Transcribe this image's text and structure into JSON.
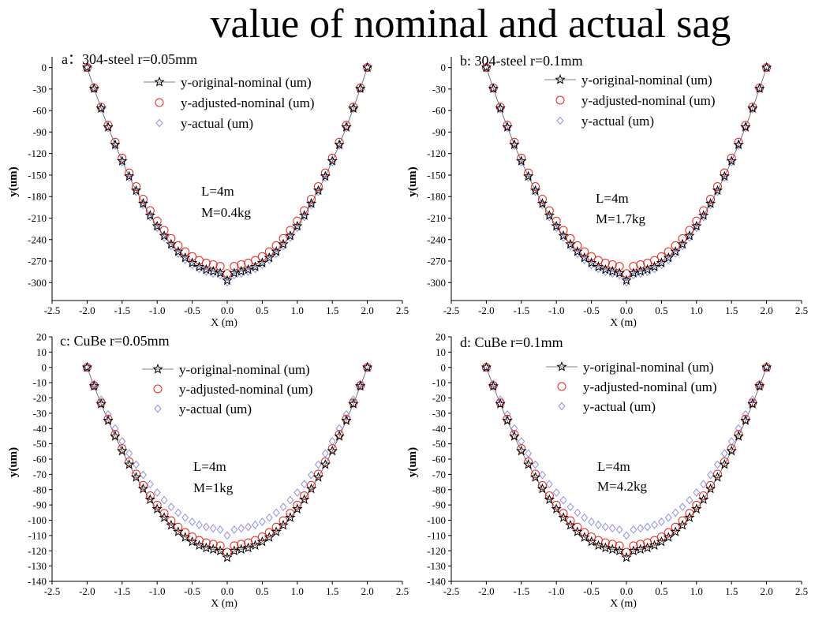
{
  "figure": {
    "title": "value of nominal and actual sag"
  },
  "colors": {
    "axis": "#000000",
    "original_line": "#5a5a5a",
    "original_marker": "#000000",
    "adjusted_marker": "#e8261f",
    "actual_marker": "#8f8fe6"
  },
  "chart_data": [
    {
      "type": "scatter",
      "panel_label": "a：304-steel r=0.05mm",
      "xlabel": "X (m)",
      "ylabel": "y(um)",
      "xlim": [
        -2.5,
        2.5
      ],
      "ylim": [
        -325,
        15
      ],
      "xticks": [
        -2.5,
        -2.0,
        -1.5,
        -1.0,
        -0.5,
        0.0,
        0.5,
        1.0,
        1.5,
        2.0,
        2.5
      ],
      "xtick_labels": [
        "-2.5",
        "-2.0",
        "-1.5",
        "-1.0",
        "-0.5",
        "0.0",
        "0.5",
        "1.0",
        "1.5",
        "2.0",
        "2.5"
      ],
      "yticks": [
        0,
        -30,
        -60,
        -90,
        -120,
        -150,
        -180,
        -210,
        -240,
        -270,
        -300
      ],
      "ytick_labels": [
        "0",
        "-30",
        "-60",
        "-90",
        "-120",
        "-150",
        "-180",
        "-210",
        "-240",
        "-270",
        "-300"
      ],
      "annotations": [
        "L=4m",
        "M=0.4kg"
      ],
      "legend": [
        "y-original-nominal (um)",
        "y-adjusted-nominal (um)",
        "y-actual (um)"
      ],
      "x": [
        -2.0,
        -1.9,
        -1.8,
        -1.7,
        -1.6,
        -1.5,
        -1.4,
        -1.3,
        -1.2,
        -1.1,
        -1.0,
        -0.9,
        -0.8,
        -0.7,
        -0.6,
        -0.5,
        -0.4,
        -0.3,
        -0.2,
        -0.1,
        0.0,
        0.1,
        0.2,
        0.3,
        0.4,
        0.5,
        0.6,
        0.7,
        0.8,
        0.9,
        1.0,
        1.1,
        1.2,
        1.3,
        1.4,
        1.5,
        1.6,
        1.7,
        1.8,
        1.9,
        2.0
      ],
      "series": [
        {
          "name": "y-original-nominal (um)",
          "marker": "star",
          "values": [
            0,
            -29.3,
            -57,
            -83.1,
            -107.6,
            -130.5,
            -151.8,
            -171.6,
            -189.7,
            -206.3,
            -221.3,
            -234.7,
            -246.5,
            -256.7,
            -265.4,
            -272.5,
            -278,
            -281.9,
            -284.2,
            -286.7,
            -297,
            -286.7,
            -284.2,
            -281.9,
            -278,
            -272.5,
            -265.4,
            -256.7,
            -246.5,
            -234.7,
            -221.3,
            -206.3,
            -189.7,
            -171.6,
            -151.8,
            -130.5,
            -107.6,
            -83.1,
            -57,
            -29.3,
            0
          ]
        },
        {
          "name": "y-adjusted-nominal (um)",
          "marker": "circle",
          "values": [
            0,
            -28.3,
            -55.1,
            -80.4,
            -104.1,
            -126.2,
            -146.9,
            -166,
            -183.6,
            -199.6,
            -214.1,
            -227.1,
            -238.5,
            -248.4,
            -256.8,
            -263.7,
            -269,
            -272.8,
            -275,
            -277.3,
            -287.3,
            -277.3,
            -275,
            -272.8,
            -269,
            -263.7,
            -256.8,
            -248.4,
            -238.5,
            -227.1,
            -214.1,
            -199.6,
            -183.6,
            -166,
            -146.9,
            -126.2,
            -104.1,
            -80.4,
            -55.1,
            -28.3,
            0
          ]
        },
        {
          "name": "y-actual (um)",
          "marker": "diamond",
          "values": [
            0,
            -29.6,
            -57.6,
            -84,
            -108.8,
            -131.9,
            -153.4,
            -173.4,
            -191.7,
            -208.5,
            -223.7,
            -237.2,
            -249.1,
            -259.5,
            -268.3,
            -275.4,
            -281,
            -284.9,
            -287.3,
            -289.7,
            -299.7,
            -289.7,
            -287.3,
            -284.9,
            -281,
            -275.4,
            -268.3,
            -259.5,
            -249.1,
            -237.2,
            -223.7,
            -208.5,
            -191.7,
            -173.4,
            -153.4,
            -131.9,
            -108.8,
            -84,
            -57.6,
            -29.6,
            0
          ]
        }
      ]
    },
    {
      "type": "scatter",
      "panel_label": "b: 304-steel r=0.1mm",
      "xlabel": "X (m)",
      "ylabel": "y(um)",
      "xlim": [
        -2.5,
        2.5
      ],
      "ylim": [
        -325,
        15
      ],
      "xticks": [
        -2.5,
        -2.0,
        -1.5,
        -1.0,
        -0.5,
        0.0,
        0.5,
        1.0,
        1.5,
        2.0,
        2.5
      ],
      "xtick_labels": [
        "-2.5",
        "-2.0",
        "-1.5",
        "-1.0",
        "-0.5",
        "0.0",
        "0.5",
        "1.0",
        "1.5",
        "2.0",
        "2.5"
      ],
      "yticks": [
        0,
        -30,
        -60,
        -90,
        -120,
        -150,
        -180,
        -210,
        -240,
        -270,
        -300
      ],
      "ytick_labels": [
        "0",
        "-30",
        "-60",
        "-90",
        "-120",
        "-150",
        "-180",
        "-210",
        "-240",
        "-270",
        "-300"
      ],
      "annotations": [
        "L=4m",
        "M=1.7kg"
      ],
      "legend": [
        "y-original-nominal (um)",
        "y-adjusted-nominal (um)",
        "y-actual (um)"
      ],
      "x": [
        -2.0,
        -1.9,
        -1.8,
        -1.7,
        -1.6,
        -1.5,
        -1.4,
        -1.3,
        -1.2,
        -1.1,
        -1.0,
        -0.9,
        -0.8,
        -0.7,
        -0.6,
        -0.5,
        -0.4,
        -0.3,
        -0.2,
        -0.1,
        0.0,
        0.1,
        0.2,
        0.3,
        0.4,
        0.5,
        0.6,
        0.7,
        0.8,
        0.9,
        1.0,
        1.1,
        1.2,
        1.3,
        1.4,
        1.5,
        1.6,
        1.7,
        1.8,
        1.9,
        2.0
      ],
      "series": [
        {
          "name": "y-original-nominal (um)",
          "marker": "star",
          "values": [
            0,
            -29.3,
            -57,
            -83.1,
            -107.6,
            -130.5,
            -151.8,
            -171.6,
            -189.7,
            -206.3,
            -221.3,
            -234.7,
            -246.5,
            -256.7,
            -265.4,
            -272.5,
            -278,
            -281.9,
            -284.2,
            -286.7,
            -297,
            -286.7,
            -284.2,
            -281.9,
            -278,
            -272.5,
            -265.4,
            -256.7,
            -246.5,
            -234.7,
            -221.3,
            -206.3,
            -189.7,
            -171.6,
            -151.8,
            -130.5,
            -107.6,
            -83.1,
            -57,
            -29.3,
            0
          ]
        },
        {
          "name": "y-adjusted-nominal (um)",
          "marker": "circle",
          "values": [
            0,
            -28.3,
            -55.1,
            -80.4,
            -104.1,
            -126.2,
            -146.9,
            -166,
            -183.6,
            -199.6,
            -214.1,
            -227.1,
            -238.5,
            -248.4,
            -256.8,
            -263.7,
            -269,
            -272.8,
            -275,
            -277.3,
            -287.3,
            -277.3,
            -275,
            -272.8,
            -269,
            -263.7,
            -256.8,
            -248.4,
            -238.5,
            -227.1,
            -214.1,
            -199.6,
            -183.6,
            -166,
            -146.9,
            -126.2,
            -104.1,
            -80.4,
            -55.1,
            -28.3,
            0
          ]
        },
        {
          "name": "y-actual (um)",
          "marker": "diamond",
          "values": [
            0,
            -29.6,
            -57.6,
            -84,
            -108.8,
            -131.9,
            -153.4,
            -173.4,
            -191.7,
            -208.5,
            -223.7,
            -237.2,
            -249.1,
            -259.5,
            -268.3,
            -275.4,
            -281,
            -284.9,
            -287.3,
            -289.7,
            -299.7,
            -289.7,
            -287.3,
            -284.9,
            -281,
            -275.4,
            -268.3,
            -259.5,
            -249.1,
            -237.2,
            -223.7,
            -208.5,
            -191.7,
            -173.4,
            -153.4,
            -131.9,
            -108.8,
            -84,
            -57.6,
            -29.6,
            0
          ]
        }
      ]
    },
    {
      "type": "scatter",
      "panel_label": "c: CuBe r=0.05mm",
      "xlabel": "X (m)",
      "ylabel": "y(um)",
      "xlim": [
        -2.5,
        2.5
      ],
      "ylim": [
        -140,
        20
      ],
      "xticks": [
        -2.5,
        -2.0,
        -1.5,
        -1.0,
        -0.5,
        0.0,
        0.5,
        1.0,
        1.5,
        2.0,
        2.5
      ],
      "xtick_labels": [
        "-2.5",
        "-2.0",
        "-1.5",
        "-1.0",
        "-0.5",
        "0.0",
        "0.5",
        "1.0",
        "1.5",
        "2.0",
        "2.5"
      ],
      "yticks": [
        20,
        10,
        0,
        -10,
        -20,
        -30,
        -40,
        -50,
        -60,
        -70,
        -80,
        -90,
        -100,
        -110,
        -120,
        -130,
        -140
      ],
      "ytick_labels": [
        "20",
        "10",
        "0",
        "-10",
        "-20",
        "-30",
        "-40",
        "-50",
        "-60",
        "-70",
        "-80",
        "-90",
        "-100",
        "-110",
        "-120",
        "-130",
        "-140"
      ],
      "annotations": [
        "L=4m",
        "M=1kg"
      ],
      "legend": [
        "y-original-nominal (um)",
        "y-adjusted-nominal (um)",
        "y-actual (um)"
      ],
      "x": [
        -2.0,
        -1.9,
        -1.8,
        -1.7,
        -1.6,
        -1.5,
        -1.4,
        -1.3,
        -1.2,
        -1.1,
        -1.0,
        -0.9,
        -0.8,
        -0.7,
        -0.6,
        -0.5,
        -0.4,
        -0.3,
        -0.2,
        -0.1,
        0.0,
        0.1,
        0.2,
        0.3,
        0.4,
        0.5,
        0.6,
        0.7,
        0.8,
        0.9,
        1.0,
        1.1,
        1.2,
        1.3,
        1.4,
        1.5,
        1.6,
        1.7,
        1.8,
        1.9,
        2.0
      ],
      "series": [
        {
          "name": "y-original-nominal (um)",
          "marker": "star",
          "values": [
            0,
            -12.3,
            -23.9,
            -34.8,
            -45.1,
            -54.7,
            -63.6,
            -71.9,
            -79.5,
            -86.5,
            -92.7,
            -98.3,
            -103.3,
            -107.6,
            -111.2,
            -114.1,
            -116.5,
            -118.1,
            -119.1,
            -120.1,
            -124.4,
            -120.1,
            -119.1,
            -118.1,
            -116.5,
            -114.1,
            -111.2,
            -107.6,
            -103.3,
            -98.3,
            -92.7,
            -86.5,
            -79.5,
            -71.9,
            -63.6,
            -54.7,
            -45.1,
            -34.8,
            -23.9,
            -12.3,
            0
          ]
        },
        {
          "name": "y-adjusted-nominal (um)",
          "marker": "circle",
          "values": [
            0,
            -11.9,
            -23.2,
            -33.8,
            -43.8,
            -53.1,
            -61.8,
            -69.8,
            -77.2,
            -84,
            -90.1,
            -95.5,
            -100.3,
            -104.5,
            -108,
            -110.9,
            -113.2,
            -114.7,
            -115.7,
            -116.7,
            -120.9,
            -116.7,
            -115.7,
            -114.7,
            -113.2,
            -110.9,
            -108,
            -104.5,
            -100.3,
            -95.5,
            -90.1,
            -84,
            -77.2,
            -69.8,
            -61.8,
            -53.1,
            -43.8,
            -33.8,
            -23.2,
            -11.9,
            0
          ]
        },
        {
          "name": "y-actual (um)",
          "marker": "diamond",
          "values": [
            0,
            -10.9,
            -21.1,
            -30.8,
            -39.9,
            -48.4,
            -56.3,
            -63.6,
            -70.3,
            -76.4,
            -81.9,
            -86.9,
            -91.3,
            -95.1,
            -98.3,
            -101,
            -103,
            -104.4,
            -105.3,
            -106.2,
            -110,
            -106.2,
            -105.3,
            -104.4,
            -103,
            -101,
            -98.3,
            -95.1,
            -91.3,
            -86.9,
            -81.9,
            -76.4,
            -70.3,
            -63.6,
            -56.3,
            -48.4,
            -39.9,
            -30.8,
            -21.1,
            -10.9,
            0
          ]
        }
      ]
    },
    {
      "type": "scatter",
      "panel_label": "d: CuBe r=0.1mm",
      "xlabel": "X (m)",
      "ylabel": "y(um)",
      "xlim": [
        -2.5,
        2.5
      ],
      "ylim": [
        -140,
        20
      ],
      "xticks": [
        -2.5,
        -2.0,
        -1.5,
        -1.0,
        -0.5,
        0.0,
        0.5,
        1.0,
        1.5,
        2.0,
        2.5
      ],
      "xtick_labels": [
        "-2.5",
        "-2.0",
        "-1.5",
        "-1.0",
        "-0.5",
        "0.0",
        "0.5",
        "1.0",
        "1.5",
        "2.0",
        "2.5"
      ],
      "yticks": [
        20,
        10,
        0,
        -10,
        -20,
        -30,
        -40,
        -50,
        -60,
        -70,
        -80,
        -90,
        -100,
        -110,
        -120,
        -130,
        -140
      ],
      "ytick_labels": [
        "20",
        "10",
        "0",
        "-10",
        "-20",
        "-30",
        "-40",
        "-50",
        "-60",
        "-70",
        "-80",
        "-90",
        "-100",
        "-110",
        "-120",
        "-130",
        "-140"
      ],
      "annotations": [
        "L=4m",
        "M=4.2kg"
      ],
      "legend": [
        "y-original-nominal (um)",
        "y-adjusted-nominal (um)",
        "y-actual (um)"
      ],
      "x": [
        -2.0,
        -1.9,
        -1.8,
        -1.7,
        -1.6,
        -1.5,
        -1.4,
        -1.3,
        -1.2,
        -1.1,
        -1.0,
        -0.9,
        -0.8,
        -0.7,
        -0.6,
        -0.5,
        -0.4,
        -0.3,
        -0.2,
        -0.1,
        0.0,
        0.1,
        0.2,
        0.3,
        0.4,
        0.5,
        0.6,
        0.7,
        0.8,
        0.9,
        1.0,
        1.1,
        1.2,
        1.3,
        1.4,
        1.5,
        1.6,
        1.7,
        1.8,
        1.9,
        2.0
      ],
      "series": [
        {
          "name": "y-original-nominal (um)",
          "marker": "star",
          "values": [
            0,
            -12.3,
            -23.9,
            -34.8,
            -45.1,
            -54.7,
            -63.6,
            -71.9,
            -79.5,
            -86.5,
            -92.7,
            -98.3,
            -103.3,
            -107.6,
            -111.2,
            -114.1,
            -116.5,
            -118.1,
            -119.1,
            -120.1,
            -124.4,
            -120.1,
            -119.1,
            -118.1,
            -116.5,
            -114.1,
            -111.2,
            -107.6,
            -103.3,
            -98.3,
            -92.7,
            -86.5,
            -79.5,
            -71.9,
            -63.6,
            -54.7,
            -45.1,
            -34.8,
            -23.9,
            -12.3,
            0
          ]
        },
        {
          "name": "y-adjusted-nominal (um)",
          "marker": "circle",
          "values": [
            0,
            -11.9,
            -23.2,
            -33.8,
            -43.8,
            -53.1,
            -61.8,
            -69.8,
            -77.2,
            -84,
            -90.1,
            -95.5,
            -100.3,
            -104.5,
            -108,
            -110.9,
            -113.2,
            -114.7,
            -115.7,
            -116.7,
            -120.9,
            -116.7,
            -115.7,
            -114.7,
            -113.2,
            -110.9,
            -108,
            -104.5,
            -100.3,
            -95.5,
            -90.1,
            -84,
            -77.2,
            -69.8,
            -61.8,
            -53.1,
            -43.8,
            -33.8,
            -23.2,
            -11.9,
            0
          ]
        },
        {
          "name": "y-actual (um)",
          "marker": "diamond",
          "values": [
            0,
            -10.9,
            -21.1,
            -30.8,
            -39.9,
            -48.4,
            -56.3,
            -63.6,
            -70.3,
            -76.4,
            -81.9,
            -86.9,
            -91.3,
            -95.1,
            -98.3,
            -101,
            -103,
            -104.4,
            -105.3,
            -106.2,
            -110,
            -106.2,
            -105.3,
            -104.4,
            -103,
            -101,
            -98.3,
            -95.1,
            -91.3,
            -86.9,
            -81.9,
            -76.4,
            -70.3,
            -63.6,
            -56.3,
            -48.4,
            -39.9,
            -30.8,
            -21.1,
            -10.9,
            0
          ]
        }
      ]
    }
  ]
}
